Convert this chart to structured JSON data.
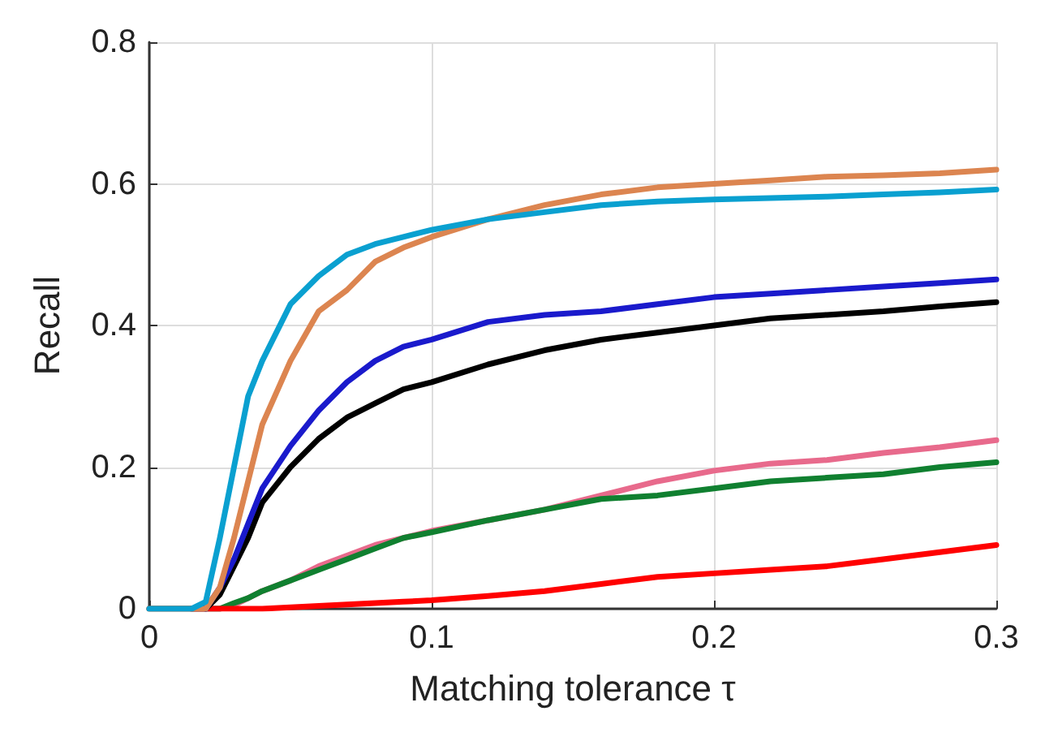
{
  "chart_data": {
    "type": "line",
    "xlabel": "Matching tolerance τ",
    "ylabel": "Recall",
    "x": [
      0,
      0.01,
      0.015,
      0.02,
      0.025,
      0.03,
      0.035,
      0.04,
      0.05,
      0.06,
      0.07,
      0.08,
      0.09,
      0.1,
      0.12,
      0.14,
      0.16,
      0.18,
      0.2,
      0.22,
      0.24,
      0.26,
      0.28,
      0.3
    ],
    "series": [
      {
        "color": "#e86a8c",
        "values": [
          null,
          null,
          0,
          0,
          0,
          0.005,
          0.015,
          0.025,
          0.04,
          0.06,
          0.075,
          0.09,
          0.1,
          0.11,
          0.125,
          0.14,
          0.16,
          0.18,
          0.195,
          0.205,
          0.21,
          0.22,
          0.228,
          0.238
        ]
      },
      {
        "color": "#108030",
        "values": [
          null,
          null,
          null,
          0,
          0,
          0.008,
          0.015,
          0.025,
          0.04,
          0.055,
          0.07,
          0.085,
          0.1,
          0.108,
          0.125,
          0.14,
          0.155,
          0.16,
          0.17,
          0.18,
          0.185,
          0.19,
          0.2,
          0.207
        ]
      },
      {
        "color": "#ff0000",
        "values": [
          null,
          null,
          0,
          0,
          0,
          0,
          0,
          0,
          0.002,
          0.004,
          0.006,
          0.008,
          0.01,
          0.012,
          0.018,
          0.025,
          0.035,
          0.045,
          0.05,
          0.055,
          0.06,
          0.07,
          0.08,
          0.09
        ]
      },
      {
        "color": "#000000",
        "values": [
          0,
          0,
          0,
          0,
          0.02,
          0.06,
          0.1,
          0.15,
          0.2,
          0.24,
          0.27,
          0.29,
          0.31,
          0.32,
          0.345,
          0.365,
          0.38,
          0.39,
          0.4,
          0.41,
          0.415,
          0.42,
          0.427,
          0.433
        ]
      },
      {
        "color": "#1a1acc",
        "values": [
          null,
          null,
          null,
          0,
          0.03,
          0.07,
          0.12,
          0.17,
          0.23,
          0.28,
          0.32,
          0.35,
          0.37,
          0.38,
          0.405,
          0.415,
          0.42,
          0.43,
          0.44,
          0.445,
          0.45,
          0.455,
          0.46,
          0.465
        ]
      },
      {
        "color": "#dc8550",
        "values": [
          0,
          0,
          0,
          0,
          0.03,
          0.1,
          0.18,
          0.26,
          0.35,
          0.42,
          0.45,
          0.49,
          0.51,
          0.525,
          0.55,
          0.57,
          0.585,
          0.595,
          0.6,
          0.605,
          0.61,
          0.612,
          0.615,
          0.62
        ]
      },
      {
        "color": "#0aa0d0",
        "values": [
          0,
          0,
          0,
          0.01,
          0.1,
          0.2,
          0.3,
          0.35,
          0.43,
          0.47,
          0.5,
          0.515,
          0.525,
          0.535,
          0.55,
          0.56,
          0.57,
          0.575,
          0.578,
          0.58,
          0.582,
          0.585,
          0.588,
          0.592
        ]
      }
    ],
    "xlim": [
      0,
      0.3
    ],
    "xticks": [
      0,
      0.1,
      0.2,
      0.3
    ],
    "ylim": [
      0,
      0.8
    ],
    "yticks": [
      0,
      0.2,
      0.4,
      0.6,
      0.8
    ],
    "grid": true,
    "marker": "none",
    "line_style": "solid"
  }
}
